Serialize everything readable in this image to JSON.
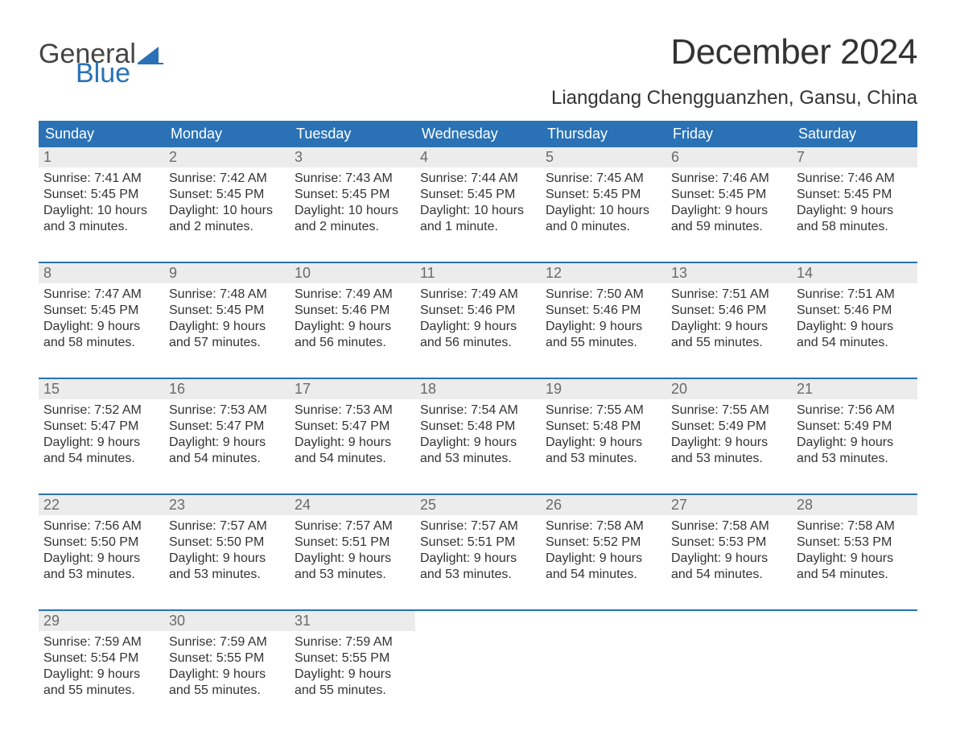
{
  "logo": {
    "general": "General",
    "blue": "Blue"
  },
  "title": "December 2024",
  "location": "Liangdang Chengguanzhen, Gansu, China",
  "colors": {
    "header_bg": "#2a72b5",
    "header_text": "#ffffff",
    "daynum_bg": "#ececec",
    "daynum_text": "#6a6a6a",
    "body_text": "#333333",
    "border": "#2a72b5",
    "page_bg": "#ffffff"
  },
  "day_names": [
    "Sunday",
    "Monday",
    "Tuesday",
    "Wednesday",
    "Thursday",
    "Friday",
    "Saturday"
  ],
  "labels": {
    "sunrise": "Sunrise: ",
    "sunset": "Sunset: ",
    "daylight": "Daylight: "
  },
  "weeks": [
    [
      {
        "n": "1",
        "sunrise": "7:41 AM",
        "sunset": "5:45 PM",
        "daylight1": "10 hours",
        "daylight2": "and 3 minutes."
      },
      {
        "n": "2",
        "sunrise": "7:42 AM",
        "sunset": "5:45 PM",
        "daylight1": "10 hours",
        "daylight2": "and 2 minutes."
      },
      {
        "n": "3",
        "sunrise": "7:43 AM",
        "sunset": "5:45 PM",
        "daylight1": "10 hours",
        "daylight2": "and 2 minutes."
      },
      {
        "n": "4",
        "sunrise": "7:44 AM",
        "sunset": "5:45 PM",
        "daylight1": "10 hours",
        "daylight2": "and 1 minute."
      },
      {
        "n": "5",
        "sunrise": "7:45 AM",
        "sunset": "5:45 PM",
        "daylight1": "10 hours",
        "daylight2": "and 0 minutes."
      },
      {
        "n": "6",
        "sunrise": "7:46 AM",
        "sunset": "5:45 PM",
        "daylight1": "9 hours",
        "daylight2": "and 59 minutes."
      },
      {
        "n": "7",
        "sunrise": "7:46 AM",
        "sunset": "5:45 PM",
        "daylight1": "9 hours",
        "daylight2": "and 58 minutes."
      }
    ],
    [
      {
        "n": "8",
        "sunrise": "7:47 AM",
        "sunset": "5:45 PM",
        "daylight1": "9 hours",
        "daylight2": "and 58 minutes."
      },
      {
        "n": "9",
        "sunrise": "7:48 AM",
        "sunset": "5:45 PM",
        "daylight1": "9 hours",
        "daylight2": "and 57 minutes."
      },
      {
        "n": "10",
        "sunrise": "7:49 AM",
        "sunset": "5:46 PM",
        "daylight1": "9 hours",
        "daylight2": "and 56 minutes."
      },
      {
        "n": "11",
        "sunrise": "7:49 AM",
        "sunset": "5:46 PM",
        "daylight1": "9 hours",
        "daylight2": "and 56 minutes."
      },
      {
        "n": "12",
        "sunrise": "7:50 AM",
        "sunset": "5:46 PM",
        "daylight1": "9 hours",
        "daylight2": "and 55 minutes."
      },
      {
        "n": "13",
        "sunrise": "7:51 AM",
        "sunset": "5:46 PM",
        "daylight1": "9 hours",
        "daylight2": "and 55 minutes."
      },
      {
        "n": "14",
        "sunrise": "7:51 AM",
        "sunset": "5:46 PM",
        "daylight1": "9 hours",
        "daylight2": "and 54 minutes."
      }
    ],
    [
      {
        "n": "15",
        "sunrise": "7:52 AM",
        "sunset": "5:47 PM",
        "daylight1": "9 hours",
        "daylight2": "and 54 minutes."
      },
      {
        "n": "16",
        "sunrise": "7:53 AM",
        "sunset": "5:47 PM",
        "daylight1": "9 hours",
        "daylight2": "and 54 minutes."
      },
      {
        "n": "17",
        "sunrise": "7:53 AM",
        "sunset": "5:47 PM",
        "daylight1": "9 hours",
        "daylight2": "and 54 minutes."
      },
      {
        "n": "18",
        "sunrise": "7:54 AM",
        "sunset": "5:48 PM",
        "daylight1": "9 hours",
        "daylight2": "and 53 minutes."
      },
      {
        "n": "19",
        "sunrise": "7:55 AM",
        "sunset": "5:48 PM",
        "daylight1": "9 hours",
        "daylight2": "and 53 minutes."
      },
      {
        "n": "20",
        "sunrise": "7:55 AM",
        "sunset": "5:49 PM",
        "daylight1": "9 hours",
        "daylight2": "and 53 minutes."
      },
      {
        "n": "21",
        "sunrise": "7:56 AM",
        "sunset": "5:49 PM",
        "daylight1": "9 hours",
        "daylight2": "and 53 minutes."
      }
    ],
    [
      {
        "n": "22",
        "sunrise": "7:56 AM",
        "sunset": "5:50 PM",
        "daylight1": "9 hours",
        "daylight2": "and 53 minutes."
      },
      {
        "n": "23",
        "sunrise": "7:57 AM",
        "sunset": "5:50 PM",
        "daylight1": "9 hours",
        "daylight2": "and 53 minutes."
      },
      {
        "n": "24",
        "sunrise": "7:57 AM",
        "sunset": "5:51 PM",
        "daylight1": "9 hours",
        "daylight2": "and 53 minutes."
      },
      {
        "n": "25",
        "sunrise": "7:57 AM",
        "sunset": "5:51 PM",
        "daylight1": "9 hours",
        "daylight2": "and 53 minutes."
      },
      {
        "n": "26",
        "sunrise": "7:58 AM",
        "sunset": "5:52 PM",
        "daylight1": "9 hours",
        "daylight2": "and 54 minutes."
      },
      {
        "n": "27",
        "sunrise": "7:58 AM",
        "sunset": "5:53 PM",
        "daylight1": "9 hours",
        "daylight2": "and 54 minutes."
      },
      {
        "n": "28",
        "sunrise": "7:58 AM",
        "sunset": "5:53 PM",
        "daylight1": "9 hours",
        "daylight2": "and 54 minutes."
      }
    ],
    [
      {
        "n": "29",
        "sunrise": "7:59 AM",
        "sunset": "5:54 PM",
        "daylight1": "9 hours",
        "daylight2": "and 55 minutes."
      },
      {
        "n": "30",
        "sunrise": "7:59 AM",
        "sunset": "5:55 PM",
        "daylight1": "9 hours",
        "daylight2": "and 55 minutes."
      },
      {
        "n": "31",
        "sunrise": "7:59 AM",
        "sunset": "5:55 PM",
        "daylight1": "9 hours",
        "daylight2": "and 55 minutes."
      },
      null,
      null,
      null,
      null
    ]
  ]
}
